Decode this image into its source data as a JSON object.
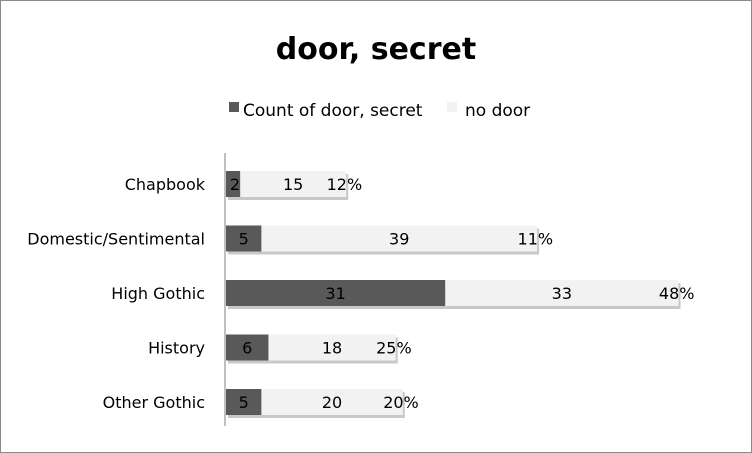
{
  "chart_data": {
    "type": "bar",
    "orientation": "horizontal",
    "stacked": true,
    "title": "door, secret",
    "legend_position": "top",
    "categories": [
      "Chapbook",
      "Domestic/Sentimental",
      "High Gothic",
      "History",
      "Other Gothic"
    ],
    "series": [
      {
        "name": "Count of door, secret",
        "values": [
          2,
          5,
          31,
          6,
          5
        ],
        "color": "#595959"
      },
      {
        "name": "no door",
        "values": [
          15,
          39,
          33,
          18,
          20
        ],
        "color": "#f2f2f2"
      }
    ],
    "percent_labels": [
      "12%",
      "11%",
      "48%",
      "25%",
      "20%"
    ],
    "xlim": [
      0,
      65
    ],
    "gridlines": false,
    "axis_visible": false
  }
}
